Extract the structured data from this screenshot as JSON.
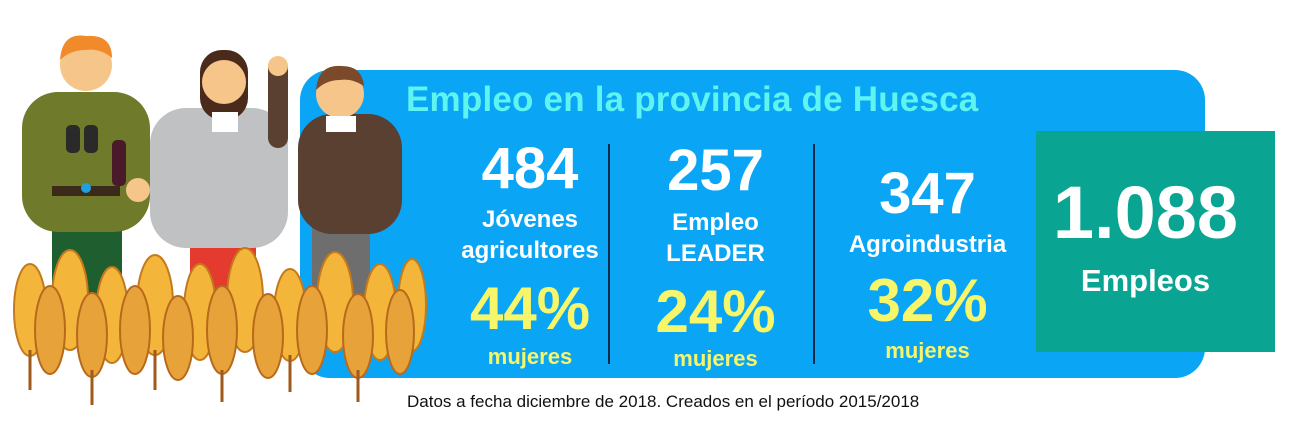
{
  "title": "Empleo en la provincia de Huesca",
  "stats": [
    {
      "value": "484",
      "label_line1": "Jóvenes",
      "label_line2": "agricultores",
      "pct": "44%",
      "pct_label": "mujeres"
    },
    {
      "value": "257",
      "label_line1": "Empleo",
      "label_line2": "LEADER",
      "pct": "24%",
      "pct_label": "mujeres"
    },
    {
      "value": "347",
      "label_line1": "Agroindustria",
      "label_line2": "",
      "pct": "32%",
      "pct_label": "mujeres"
    }
  ],
  "total": {
    "value": "1.088",
    "label": "Empleos"
  },
  "footnote": "Datos a fecha diciembre de 2018. Creados en el período 2015/2018",
  "colors": {
    "panel": "#0aa6f5",
    "title": "#5ef4f0",
    "percent": "#f7f56a",
    "total_box": "#0aa592"
  },
  "illustration": {
    "icon": "farmers-and-wheat-illustration"
  }
}
